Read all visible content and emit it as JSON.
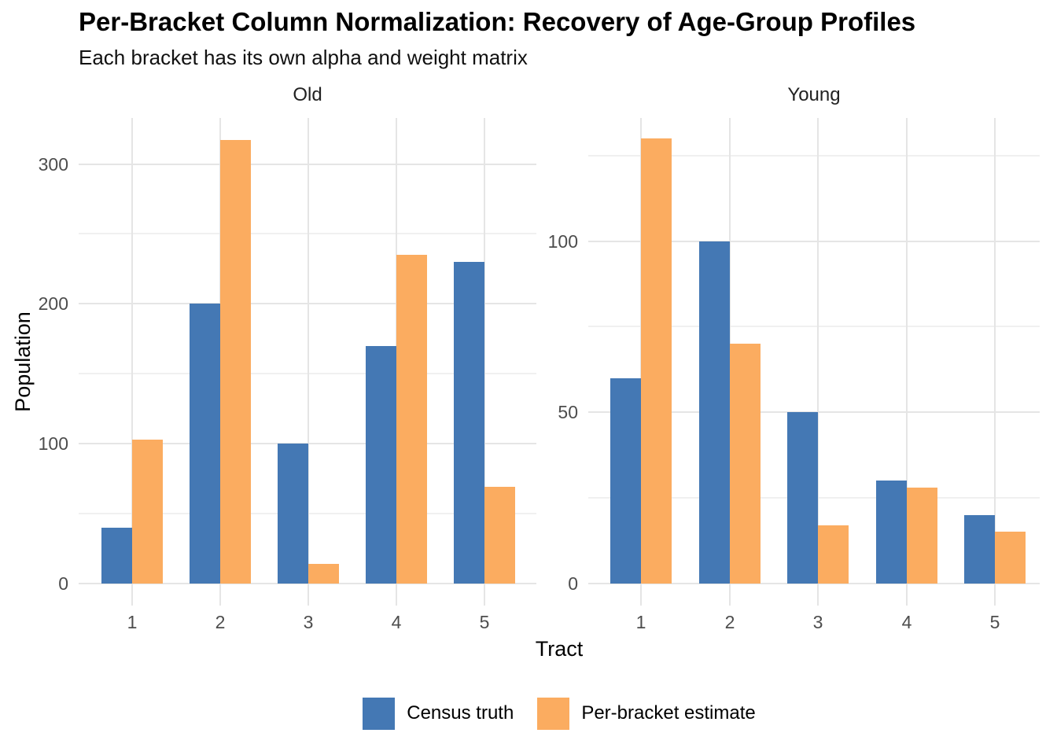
{
  "title": "Per-Bracket Column Normalization: Recovery of Age-Group Profiles",
  "subtitle": "Each bracket has its own alpha and weight matrix",
  "colors": {
    "census_truth": "#4478B4",
    "per_bracket_estimate": "#FBAC60",
    "grid_major": "#E5E5E5",
    "grid_minor": "#F0F0F0",
    "axis_text": "#4D4D4D",
    "text": "#000000"
  },
  "legend": {
    "items": [
      {
        "label": "Census truth",
        "color": "#4478B4"
      },
      {
        "label": "Per-bracket estimate",
        "color": "#FBAC60"
      }
    ]
  },
  "chart_data": {
    "type": "bar",
    "grouped": true,
    "title": "Per-Bracket Column Normalization: Recovery of Age-Group Profiles",
    "subtitle": "Each bracket has its own alpha and weight matrix",
    "xlabel": "Tract",
    "ylabel": "Population",
    "grid": true,
    "legend_position": "bottom",
    "facets": [
      {
        "title": "Old",
        "categories": [
          "1",
          "2",
          "3",
          "4",
          "5"
        ],
        "series": [
          {
            "name": "Census truth",
            "color": "#4478B4",
            "values": [
              40,
              200,
              100,
              170,
              230
            ]
          },
          {
            "name": "Per-bracket estimate",
            "color": "#FBAC60",
            "values": [
              103,
              317,
              14,
              235,
              69
            ]
          }
        ],
        "y_major_ticks": [
          0,
          100,
          200,
          300
        ],
        "y_minor_ticks": [
          50,
          150,
          250
        ],
        "ylim": [
          -16,
          333
        ]
      },
      {
        "title": "Young",
        "categories": [
          "1",
          "2",
          "3",
          "4",
          "5"
        ],
        "series": [
          {
            "name": "Census truth",
            "color": "#4478B4",
            "values": [
              60,
              100,
              50,
              30,
              20
            ]
          },
          {
            "name": "Per-bracket estimate",
            "color": "#FBAC60",
            "values": [
              130,
              70,
              17,
              28,
              15
            ]
          }
        ],
        "y_major_ticks": [
          0,
          50,
          100
        ],
        "y_minor_ticks": [
          25,
          75,
          125
        ],
        "ylim": [
          -6.5,
          136
        ]
      }
    ]
  }
}
